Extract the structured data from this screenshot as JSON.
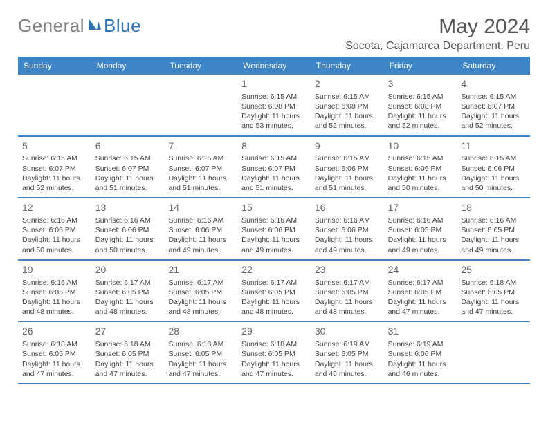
{
  "brand": {
    "part1": "General",
    "part2": "Blue",
    "color_gray": "#808080",
    "color_blue": "#2f73b5"
  },
  "title": "May 2024",
  "location": "Socota, Cajamarca Department, Peru",
  "colors": {
    "header_bg": "#3d85c6",
    "row_border": "#3d85c6",
    "text": "#444444",
    "daynum": "#666666"
  },
  "day_headers": [
    "Sunday",
    "Monday",
    "Tuesday",
    "Wednesday",
    "Thursday",
    "Friday",
    "Saturday"
  ],
  "weeks": [
    [
      {
        "num": "",
        "sunrise": "",
        "sunset": "",
        "daylight": ""
      },
      {
        "num": "",
        "sunrise": "",
        "sunset": "",
        "daylight": ""
      },
      {
        "num": "",
        "sunrise": "",
        "sunset": "",
        "daylight": ""
      },
      {
        "num": "1",
        "sunrise": "Sunrise: 6:15 AM",
        "sunset": "Sunset: 6:08 PM",
        "daylight": "Daylight: 11 hours and 53 minutes."
      },
      {
        "num": "2",
        "sunrise": "Sunrise: 6:15 AM",
        "sunset": "Sunset: 6:08 PM",
        "daylight": "Daylight: 11 hours and 52 minutes."
      },
      {
        "num": "3",
        "sunrise": "Sunrise: 6:15 AM",
        "sunset": "Sunset: 6:08 PM",
        "daylight": "Daylight: 11 hours and 52 minutes."
      },
      {
        "num": "4",
        "sunrise": "Sunrise: 6:15 AM",
        "sunset": "Sunset: 6:07 PM",
        "daylight": "Daylight: 11 hours and 52 minutes."
      }
    ],
    [
      {
        "num": "5",
        "sunrise": "Sunrise: 6:15 AM",
        "sunset": "Sunset: 6:07 PM",
        "daylight": "Daylight: 11 hours and 52 minutes."
      },
      {
        "num": "6",
        "sunrise": "Sunrise: 6:15 AM",
        "sunset": "Sunset: 6:07 PM",
        "daylight": "Daylight: 11 hours and 51 minutes."
      },
      {
        "num": "7",
        "sunrise": "Sunrise: 6:15 AM",
        "sunset": "Sunset: 6:07 PM",
        "daylight": "Daylight: 11 hours and 51 minutes."
      },
      {
        "num": "8",
        "sunrise": "Sunrise: 6:15 AM",
        "sunset": "Sunset: 6:07 PM",
        "daylight": "Daylight: 11 hours and 51 minutes."
      },
      {
        "num": "9",
        "sunrise": "Sunrise: 6:15 AM",
        "sunset": "Sunset: 6:06 PM",
        "daylight": "Daylight: 11 hours and 51 minutes."
      },
      {
        "num": "10",
        "sunrise": "Sunrise: 6:15 AM",
        "sunset": "Sunset: 6:06 PM",
        "daylight": "Daylight: 11 hours and 50 minutes."
      },
      {
        "num": "11",
        "sunrise": "Sunrise: 6:15 AM",
        "sunset": "Sunset: 6:06 PM",
        "daylight": "Daylight: 11 hours and 50 minutes."
      }
    ],
    [
      {
        "num": "12",
        "sunrise": "Sunrise: 6:16 AM",
        "sunset": "Sunset: 6:06 PM",
        "daylight": "Daylight: 11 hours and 50 minutes."
      },
      {
        "num": "13",
        "sunrise": "Sunrise: 6:16 AM",
        "sunset": "Sunset: 6:06 PM",
        "daylight": "Daylight: 11 hours and 50 minutes."
      },
      {
        "num": "14",
        "sunrise": "Sunrise: 6:16 AM",
        "sunset": "Sunset: 6:06 PM",
        "daylight": "Daylight: 11 hours and 49 minutes."
      },
      {
        "num": "15",
        "sunrise": "Sunrise: 6:16 AM",
        "sunset": "Sunset: 6:06 PM",
        "daylight": "Daylight: 11 hours and 49 minutes."
      },
      {
        "num": "16",
        "sunrise": "Sunrise: 6:16 AM",
        "sunset": "Sunset: 6:06 PM",
        "daylight": "Daylight: 11 hours and 49 minutes."
      },
      {
        "num": "17",
        "sunrise": "Sunrise: 6:16 AM",
        "sunset": "Sunset: 6:05 PM",
        "daylight": "Daylight: 11 hours and 49 minutes."
      },
      {
        "num": "18",
        "sunrise": "Sunrise: 6:16 AM",
        "sunset": "Sunset: 6:05 PM",
        "daylight": "Daylight: 11 hours and 49 minutes."
      }
    ],
    [
      {
        "num": "19",
        "sunrise": "Sunrise: 6:16 AM",
        "sunset": "Sunset: 6:05 PM",
        "daylight": "Daylight: 11 hours and 48 minutes."
      },
      {
        "num": "20",
        "sunrise": "Sunrise: 6:17 AM",
        "sunset": "Sunset: 6:05 PM",
        "daylight": "Daylight: 11 hours and 48 minutes."
      },
      {
        "num": "21",
        "sunrise": "Sunrise: 6:17 AM",
        "sunset": "Sunset: 6:05 PM",
        "daylight": "Daylight: 11 hours and 48 minutes."
      },
      {
        "num": "22",
        "sunrise": "Sunrise: 6:17 AM",
        "sunset": "Sunset: 6:05 PM",
        "daylight": "Daylight: 11 hours and 48 minutes."
      },
      {
        "num": "23",
        "sunrise": "Sunrise: 6:17 AM",
        "sunset": "Sunset: 6:05 PM",
        "daylight": "Daylight: 11 hours and 48 minutes."
      },
      {
        "num": "24",
        "sunrise": "Sunrise: 6:17 AM",
        "sunset": "Sunset: 6:05 PM",
        "daylight": "Daylight: 11 hours and 47 minutes."
      },
      {
        "num": "25",
        "sunrise": "Sunrise: 6:18 AM",
        "sunset": "Sunset: 6:05 PM",
        "daylight": "Daylight: 11 hours and 47 minutes."
      }
    ],
    [
      {
        "num": "26",
        "sunrise": "Sunrise: 6:18 AM",
        "sunset": "Sunset: 6:05 PM",
        "daylight": "Daylight: 11 hours and 47 minutes."
      },
      {
        "num": "27",
        "sunrise": "Sunrise: 6:18 AM",
        "sunset": "Sunset: 6:05 PM",
        "daylight": "Daylight: 11 hours and 47 minutes."
      },
      {
        "num": "28",
        "sunrise": "Sunrise: 6:18 AM",
        "sunset": "Sunset: 6:05 PM",
        "daylight": "Daylight: 11 hours and 47 minutes."
      },
      {
        "num": "29",
        "sunrise": "Sunrise: 6:18 AM",
        "sunset": "Sunset: 6:05 PM",
        "daylight": "Daylight: 11 hours and 47 minutes."
      },
      {
        "num": "30",
        "sunrise": "Sunrise: 6:19 AM",
        "sunset": "Sunset: 6:05 PM",
        "daylight": "Daylight: 11 hours and 46 minutes."
      },
      {
        "num": "31",
        "sunrise": "Sunrise: 6:19 AM",
        "sunset": "Sunset: 6:06 PM",
        "daylight": "Daylight: 11 hours and 46 minutes."
      },
      {
        "num": "",
        "sunrise": "",
        "sunset": "",
        "daylight": ""
      }
    ]
  ]
}
